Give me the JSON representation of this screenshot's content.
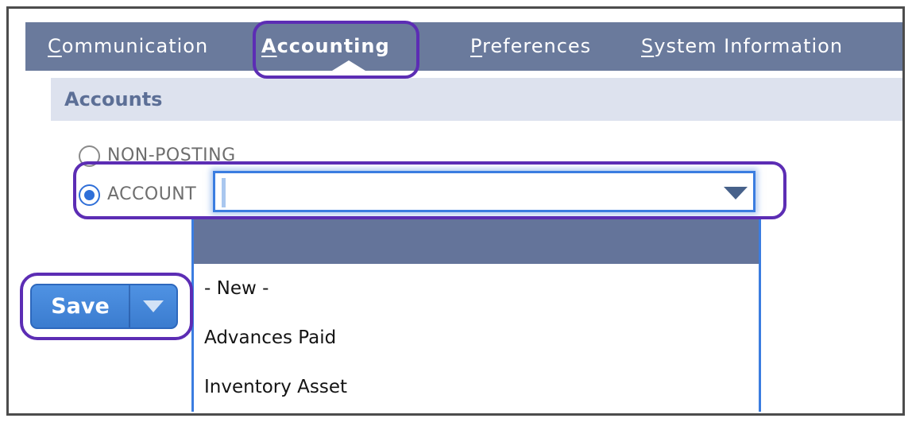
{
  "nav": {
    "tabs": [
      {
        "label": "Communication",
        "mnemonic": "C",
        "rest": "ommunication",
        "active": false
      },
      {
        "label": "Accounting",
        "mnemonic": "A",
        "rest": "ccounting",
        "active": true
      },
      {
        "label": "Preferences",
        "mnemonic": "P",
        "rest": "references",
        "active": false
      },
      {
        "label": "System Information",
        "mnemonic": "S",
        "rest": "ystem Information",
        "active": false
      }
    ]
  },
  "section": {
    "title": "Accounts"
  },
  "form": {
    "radios": [
      {
        "label": "NON-POSTING",
        "selected": false
      },
      {
        "label": "ACCOUNT",
        "selected": true
      }
    ],
    "account_combo": {
      "value": "",
      "state": "expanded",
      "icon": "dropdown-arrow-icon"
    }
  },
  "dropdown": {
    "highlighted_row": {
      "label": "",
      "selected": true
    },
    "items": [
      {
        "label": "- New -"
      },
      {
        "label": "Advances Paid"
      },
      {
        "label": "Inventory Asset"
      }
    ]
  },
  "toolbar": {
    "save_label": "Save",
    "save_menu_icon": "dropdown-arrow-icon"
  },
  "annotations": {
    "color": "#5c2db4",
    "highlights": [
      "accounting-tab",
      "account-field-with-combo",
      "save-button"
    ]
  },
  "colors": {
    "nav_bg": "#6a7a9c",
    "section_bg": "#dde2ee",
    "section_text": "#5c6f96",
    "accent_blue": "#3b7de0",
    "selected_radio_blue": "#2f6fd8",
    "dropdown_header_bg": "#64749a",
    "save_button_blue": "#4285d8",
    "frame_border": "#4c4c4c"
  }
}
